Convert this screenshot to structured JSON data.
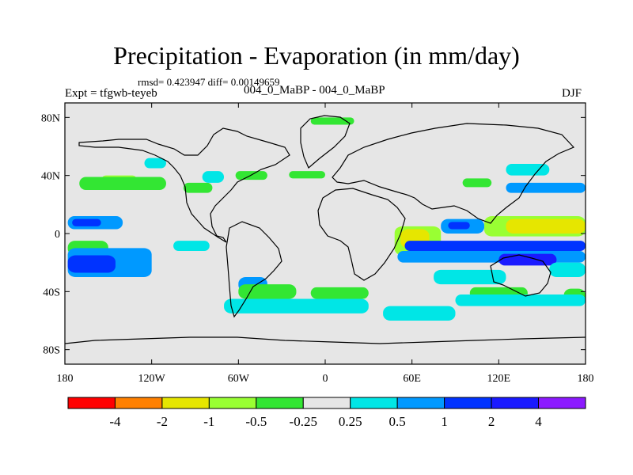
{
  "header": {
    "title": "Precipitation - Evaporation (in mm/day)",
    "stats": "rmsd= 0.423947 diff= 0.00149659",
    "experiment": "Expt = tfgwb-teyeb",
    "cases": "004_0_MaBP - 004_0_MaBP",
    "season": "DJF"
  },
  "chart_data": {
    "type": "heatmap",
    "title": "Precipitation - Evaporation (in mm/day)",
    "subtitle": "004_0_MaBP - 004_0_MaBP",
    "xlabel": "",
    "ylabel": "",
    "xlim": [
      -180,
      180
    ],
    "ylim": [
      -90,
      90
    ],
    "x_ticks": [
      {
        "value": -180,
        "label": "180"
      },
      {
        "value": -120,
        "label": "120W"
      },
      {
        "value": -60,
        "label": "60W"
      },
      {
        "value": 0,
        "label": "0"
      },
      {
        "value": 60,
        "label": "60E"
      },
      {
        "value": 120,
        "label": "120E"
      },
      {
        "value": 180,
        "label": "180"
      }
    ],
    "y_ticks": [
      {
        "value": 80,
        "label": "80N"
      },
      {
        "value": 40,
        "label": "40N"
      },
      {
        "value": 0,
        "label": "0"
      },
      {
        "value": -40,
        "label": "40S"
      },
      {
        "value": -80,
        "label": "80S"
      }
    ],
    "colorbar": {
      "labels": [
        "-4",
        "-2",
        "-1",
        "-0.5",
        "-0.25",
        "0.25",
        "0.5",
        "1",
        "2",
        "4"
      ],
      "colors": [
        "#ff0000",
        "#ff8000",
        "#e6e600",
        "#99ff33",
        "#33e633",
        "#e6e6e6",
        "#00e6e6",
        "#0099ff",
        "#0033ff",
        "#1a1aff",
        "#8c1aff"
      ]
    },
    "regions": [
      {
        "level": "-0.5",
        "color": "#99ff33",
        "lon": [
          -155,
          -130
        ],
        "lat": [
          33,
          40
        ]
      },
      {
        "level": "-0.25",
        "color": "#33e633",
        "lon": [
          -170,
          -110
        ],
        "lat": [
          30,
          39
        ]
      },
      {
        "level": "-0.25",
        "color": "#33e633",
        "lon": [
          -98,
          -78
        ],
        "lat": [
          28,
          35
        ]
      },
      {
        "level": "-0.25",
        "color": "#33e633",
        "lon": [
          -62,
          -40
        ],
        "lat": [
          37,
          43
        ]
      },
      {
        "level": "-0.25",
        "color": "#33e633",
        "lon": [
          -25,
          0
        ],
        "lat": [
          38,
          43
        ]
      },
      {
        "level": "-0.25",
        "color": "#33e633",
        "lon": [
          -10,
          20
        ],
        "lat": [
          75,
          80
        ]
      },
      {
        "level": "-0.25",
        "color": "#33e633",
        "lon": [
          95,
          115
        ],
        "lat": [
          32,
          38
        ]
      },
      {
        "level": "0.25",
        "color": "#00e6e6",
        "lon": [
          -125,
          -110
        ],
        "lat": [
          45,
          52
        ]
      },
      {
        "level": "0.25",
        "color": "#00e6e6",
        "lon": [
          -85,
          -70
        ],
        "lat": [
          35,
          43
        ]
      },
      {
        "level": "0.25",
        "color": "#00e6e6",
        "lon": [
          125,
          155
        ],
        "lat": [
          40,
          48
        ]
      },
      {
        "level": "0.5",
        "color": "#0099ff",
        "lon": [
          -178,
          -140
        ],
        "lat": [
          3,
          12
        ]
      },
      {
        "level": "1",
        "color": "#0033ff",
        "lon": [
          -175,
          -155
        ],
        "lat": [
          5,
          10
        ]
      },
      {
        "level": "0.5",
        "color": "#0099ff",
        "lon": [
          125,
          180
        ],
        "lat": [
          28,
          35
        ]
      },
      {
        "level": "-0.25",
        "color": "#33e633",
        "lon": [
          -178,
          -150
        ],
        "lat": [
          -15,
          -5
        ]
      },
      {
        "level": "0.5",
        "color": "#0099ff",
        "lon": [
          -178,
          -120
        ],
        "lat": [
          -30,
          -10
        ]
      },
      {
        "level": "1",
        "color": "#0033ff",
        "lon": [
          -178,
          -145
        ],
        "lat": [
          -27,
          -15
        ]
      },
      {
        "level": "0.5",
        "color": "#0099ff",
        "lon": [
          -60,
          -40
        ],
        "lat": [
          -40,
          -30
        ]
      },
      {
        "level": "0.25",
        "color": "#00e6e6",
        "lon": [
          -105,
          -80
        ],
        "lat": [
          -12,
          -5
        ]
      },
      {
        "level": "-0.25",
        "color": "#33e633",
        "lon": [
          -60,
          -20
        ],
        "lat": [
          -45,
          -35
        ]
      },
      {
        "level": "-0.25",
        "color": "#33e633",
        "lon": [
          -10,
          30
        ],
        "lat": [
          -45,
          -37
        ]
      },
      {
        "level": "0.25",
        "color": "#00e6e6",
        "lon": [
          -70,
          30
        ],
        "lat": [
          -55,
          -45
        ]
      },
      {
        "level": "-0.5",
        "color": "#99ff33",
        "lon": [
          48,
          80
        ],
        "lat": [
          -15,
          5
        ]
      },
      {
        "level": "-1",
        "color": "#e6e600",
        "lon": [
          52,
          72
        ],
        "lat": [
          -10,
          3
        ]
      },
      {
        "level": "0.5",
        "color": "#0099ff",
        "lon": [
          80,
          110
        ],
        "lat": [
          0,
          10
        ]
      },
      {
        "level": "1",
        "color": "#0033ff",
        "lon": [
          85,
          100
        ],
        "lat": [
          3,
          8
        ]
      },
      {
        "level": "1",
        "color": "#0033ff",
        "lon": [
          55,
          180
        ],
        "lat": [
          -12,
          -5
        ]
      },
      {
        "level": "0.5",
        "color": "#0099ff",
        "lon": [
          50,
          180
        ],
        "lat": [
          -20,
          -12
        ]
      },
      {
        "level": "2",
        "color": "#1a1aff",
        "lon": [
          120,
          160
        ],
        "lat": [
          -22,
          -14
        ]
      },
      {
        "level": "-0.5",
        "color": "#99ff33",
        "lon": [
          110,
          180
        ],
        "lat": [
          -2,
          12
        ]
      },
      {
        "level": "-1",
        "color": "#e6e600",
        "lon": [
          125,
          180
        ],
        "lat": [
          0,
          10
        ]
      },
      {
        "level": "0.25",
        "color": "#00e6e6",
        "lon": [
          75,
          125
        ],
        "lat": [
          -35,
          -25
        ]
      },
      {
        "level": "0.25",
        "color": "#00e6e6",
        "lon": [
          155,
          180
        ],
        "lat": [
          -30,
          -20
        ]
      },
      {
        "level": "-0.25",
        "color": "#33e633",
        "lon": [
          100,
          140
        ],
        "lat": [
          -45,
          -37
        ]
      },
      {
        "level": "-0.25",
        "color": "#33e633",
        "lon": [
          165,
          180
        ],
        "lat": [
          -48,
          -38
        ]
      },
      {
        "level": "0.25",
        "color": "#00e6e6",
        "lon": [
          40,
          90
        ],
        "lat": [
          -60,
          -50
        ]
      },
      {
        "level": "0.25",
        "color": "#00e6e6",
        "lon": [
          90,
          180
        ],
        "lat": [
          -50,
          -42
        ]
      }
    ]
  }
}
